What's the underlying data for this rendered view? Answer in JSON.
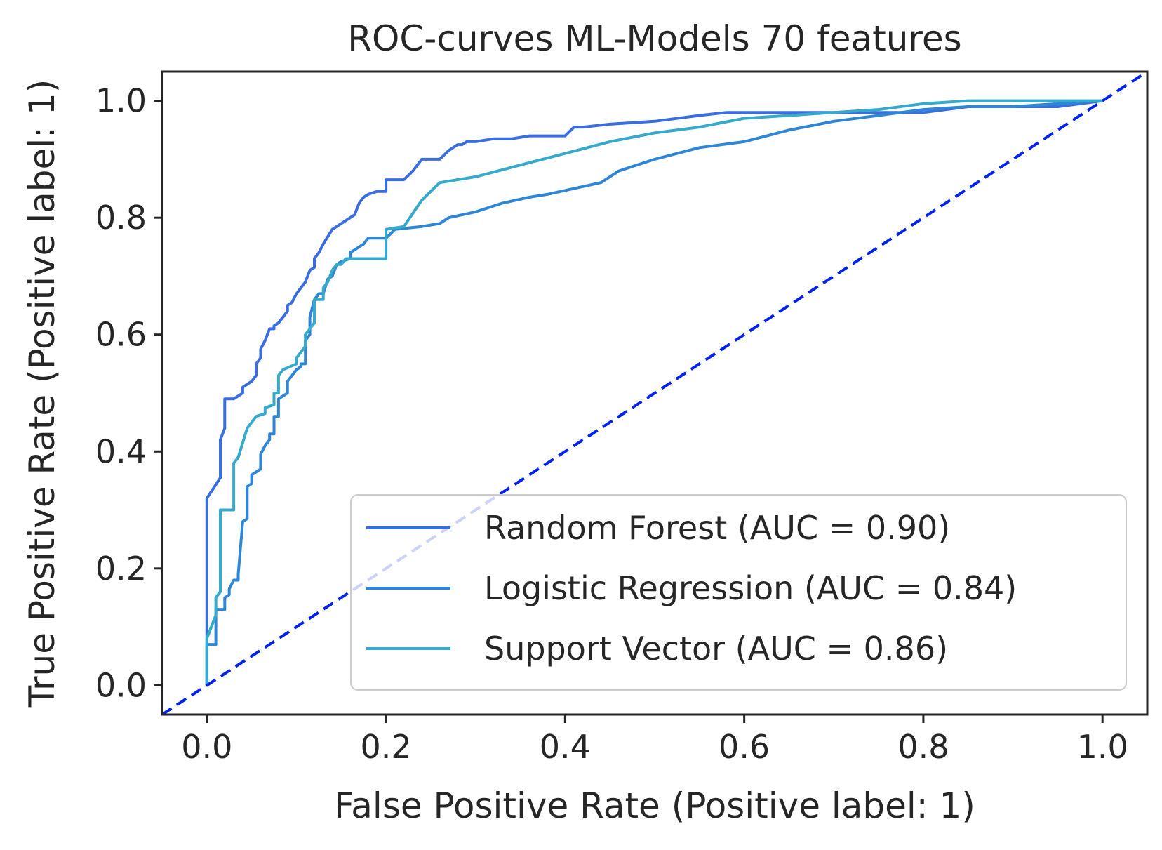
{
  "chart_data": {
    "type": "line",
    "title": "ROC-curves ML-Models 70 features",
    "xlabel": "False Positive Rate (Positive label: 1)",
    "ylabel": "True Positive Rate (Positive label: 1)",
    "xlim": [
      -0.05,
      1.05
    ],
    "ylim": [
      -0.05,
      1.05
    ],
    "xticks": [
      "0.0",
      "0.2",
      "0.4",
      "0.6",
      "0.8",
      "1.0"
    ],
    "yticks": [
      "0.0",
      "0.2",
      "0.4",
      "0.6",
      "0.8",
      "1.0"
    ],
    "grid": false,
    "legend_position": "lower-right",
    "chance_line": {
      "x": [
        -0.05,
        1.05
      ],
      "y": [
        -0.05,
        1.05
      ],
      "color": "#0022ee",
      "style": "dashed"
    },
    "series": [
      {
        "name": "Random Forest (AUC = 0.90)",
        "color": "#3a6ee0",
        "x": [
          0.0,
          0.0,
          0.015,
          0.015,
          0.02,
          0.02,
          0.02,
          0.025,
          0.025,
          0.03,
          0.04,
          0.04,
          0.05,
          0.05,
          0.055,
          0.055,
          0.06,
          0.06,
          0.065,
          0.07,
          0.075,
          0.075,
          0.08,
          0.09,
          0.09,
          0.095,
          0.1,
          0.105,
          0.11,
          0.115,
          0.12,
          0.12,
          0.125,
          0.13,
          0.14,
          0.15,
          0.16,
          0.165,
          0.17,
          0.175,
          0.18,
          0.19,
          0.2,
          0.2,
          0.22,
          0.23,
          0.24,
          0.25,
          0.26,
          0.27,
          0.28,
          0.285,
          0.29,
          0.3,
          0.32,
          0.34,
          0.36,
          0.4,
          0.41,
          0.42,
          0.45,
          0.5,
          0.55,
          0.58,
          0.7,
          0.75,
          0.8,
          0.85,
          0.95,
          1.0
        ],
        "y": [
          0.0,
          0.32,
          0.355,
          0.42,
          0.44,
          0.48,
          0.49,
          0.49,
          0.49,
          0.49,
          0.5,
          0.51,
          0.52,
          0.52,
          0.53,
          0.55,
          0.56,
          0.575,
          0.59,
          0.61,
          0.61,
          0.615,
          0.62,
          0.64,
          0.65,
          0.655,
          0.67,
          0.68,
          0.69,
          0.71,
          0.715,
          0.73,
          0.74,
          0.755,
          0.78,
          0.79,
          0.8,
          0.805,
          0.825,
          0.835,
          0.84,
          0.845,
          0.845,
          0.865,
          0.865,
          0.88,
          0.9,
          0.9,
          0.9,
          0.915,
          0.925,
          0.925,
          0.93,
          0.93,
          0.935,
          0.935,
          0.94,
          0.94,
          0.955,
          0.955,
          0.96,
          0.965,
          0.975,
          0.98,
          0.98,
          0.98,
          0.98,
          0.99,
          0.99,
          1.0
        ]
      },
      {
        "name": "Logistic Regression (AUC = 0.84)",
        "color": "#2f86d6",
        "x": [
          0.0,
          0.0,
          0.01,
          0.01,
          0.02,
          0.02,
          0.025,
          0.025,
          0.03,
          0.035,
          0.035,
          0.04,
          0.045,
          0.045,
          0.05,
          0.05,
          0.06,
          0.06,
          0.065,
          0.07,
          0.07,
          0.075,
          0.075,
          0.08,
          0.08,
          0.09,
          0.09,
          0.095,
          0.1,
          0.105,
          0.105,
          0.11,
          0.11,
          0.115,
          0.115,
          0.12,
          0.125,
          0.13,
          0.135,
          0.14,
          0.145,
          0.15,
          0.16,
          0.16,
          0.17,
          0.175,
          0.18,
          0.2,
          0.21,
          0.24,
          0.26,
          0.27,
          0.3,
          0.33,
          0.36,
          0.38,
          0.44,
          0.46,
          0.5,
          0.55,
          0.6,
          0.65,
          0.7,
          0.75,
          0.8,
          0.85,
          0.9,
          0.95,
          1.0
        ],
        "y": [
          0.0,
          0.07,
          0.07,
          0.13,
          0.13,
          0.15,
          0.155,
          0.165,
          0.18,
          0.18,
          0.19,
          0.28,
          0.285,
          0.34,
          0.345,
          0.36,
          0.37,
          0.395,
          0.41,
          0.42,
          0.43,
          0.43,
          0.46,
          0.46,
          0.49,
          0.5,
          0.52,
          0.53,
          0.54,
          0.545,
          0.55,
          0.55,
          0.59,
          0.6,
          0.63,
          0.66,
          0.67,
          0.67,
          0.695,
          0.7,
          0.72,
          0.725,
          0.73,
          0.74,
          0.75,
          0.755,
          0.765,
          0.765,
          0.78,
          0.785,
          0.79,
          0.8,
          0.81,
          0.825,
          0.835,
          0.84,
          0.86,
          0.88,
          0.9,
          0.92,
          0.93,
          0.95,
          0.965,
          0.975,
          0.985,
          0.99,
          0.99,
          0.995,
          1.0
        ]
      },
      {
        "name": "Support Vector (AUC = 0.86)",
        "color": "#36aacc",
        "x": [
          0.0,
          0.0,
          0.01,
          0.01,
          0.015,
          0.015,
          0.03,
          0.03,
          0.035,
          0.035,
          0.045,
          0.045,
          0.055,
          0.055,
          0.065,
          0.065,
          0.075,
          0.075,
          0.08,
          0.08,
          0.085,
          0.085,
          0.1,
          0.1,
          0.11,
          0.11,
          0.12,
          0.12,
          0.13,
          0.13,
          0.135,
          0.14,
          0.145,
          0.15,
          0.155,
          0.16,
          0.2,
          0.2,
          0.22,
          0.24,
          0.26,
          0.26,
          0.3,
          0.35,
          0.4,
          0.45,
          0.5,
          0.55,
          0.6,
          0.65,
          0.7,
          0.75,
          0.8,
          0.85,
          1.0
        ],
        "y": [
          0.0,
          0.08,
          0.12,
          0.15,
          0.16,
          0.3,
          0.3,
          0.38,
          0.39,
          0.39,
          0.44,
          0.44,
          0.46,
          0.46,
          0.465,
          0.475,
          0.48,
          0.5,
          0.5,
          0.53,
          0.54,
          0.54,
          0.55,
          0.56,
          0.58,
          0.6,
          0.62,
          0.66,
          0.66,
          0.68,
          0.69,
          0.71,
          0.72,
          0.72,
          0.73,
          0.73,
          0.73,
          0.78,
          0.785,
          0.83,
          0.86,
          0.86,
          0.87,
          0.89,
          0.91,
          0.93,
          0.945,
          0.955,
          0.97,
          0.975,
          0.98,
          0.985,
          0.995,
          1.0,
          1.0
        ]
      }
    ]
  }
}
